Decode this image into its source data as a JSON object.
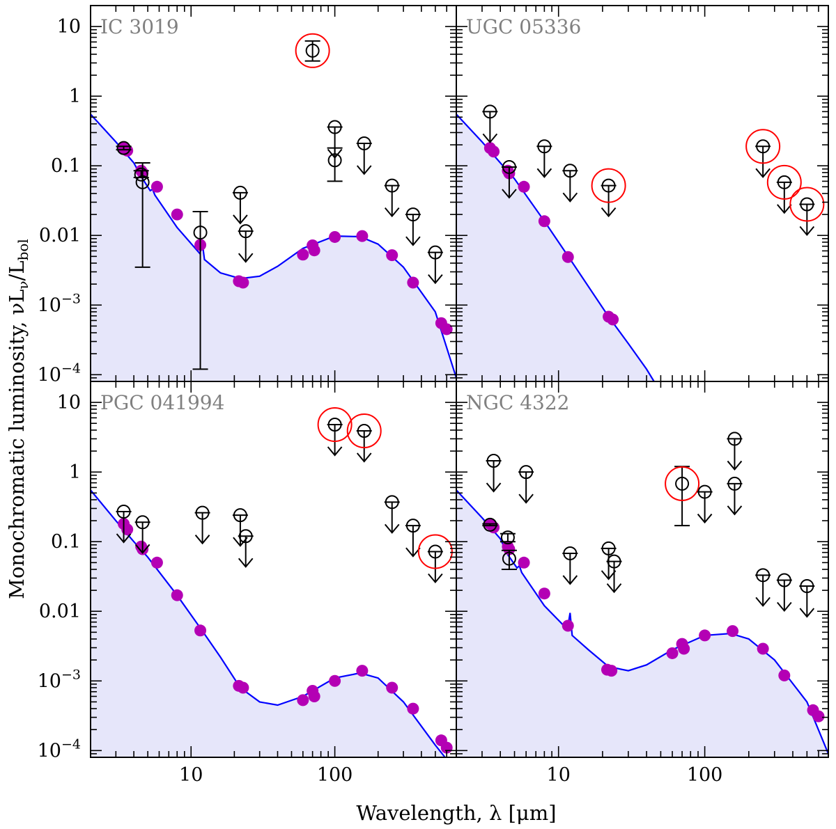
{
  "figure": {
    "xlabel": "Wavelength, λ [μm]",
    "ylabel": "Monochromatic luminosity, νL",
    "ylabel_nu": "ν",
    "ylabel_div": "/L",
    "ylabel_bol": "bol"
  },
  "colors": {
    "model_line": "#0000ff",
    "model_fill": "#e6e6fa",
    "model_points": "#b400b4",
    "observations": "#000000",
    "outlier_ring": "#ff0000",
    "panel_label": "#808080"
  },
  "x_ticks": [
    {
      "value": 10,
      "label": "10"
    },
    {
      "value": 100,
      "label": "100"
    }
  ],
  "y_ticks": [
    {
      "value": 10,
      "label": "10"
    },
    {
      "value": 1,
      "label": "1"
    },
    {
      "value": 0.1,
      "label": "0.1"
    },
    {
      "value": 0.01,
      "label": "0.01"
    },
    {
      "value": 0.001,
      "label": "10",
      "exp": "−3"
    },
    {
      "value": 0.0001,
      "label": "10",
      "exp": "−4"
    }
  ],
  "chart_data": [
    {
      "type": "scatter",
      "name": "IC 3019",
      "xscale": "log",
      "yscale": "log",
      "xlim": [
        2.0,
        700
      ],
      "ylim": [
        8e-05,
        20
      ],
      "model_curve": {
        "x": [
          2,
          3,
          4,
          4.5,
          5.2,
          5.4,
          5.6,
          8,
          11.5,
          12,
          12.4,
          16,
          22,
          30,
          40,
          60,
          100,
          150,
          200,
          300,
          500,
          700
        ],
        "y": [
          0.55,
          0.22,
          0.11,
          0.07,
          0.044,
          0.046,
          0.038,
          0.013,
          0.0055,
          0.0075,
          0.0045,
          0.0029,
          0.0024,
          0.0026,
          0.0036,
          0.0065,
          0.0098,
          0.0096,
          0.0075,
          0.0035,
          0.0008,
          9e-05
        ]
      },
      "model_points": {
        "x": [
          3.4,
          3.6,
          4.5,
          4.6,
          5.8,
          8.0,
          11.6,
          21.5,
          23.0,
          60,
          70,
          72,
          100,
          155,
          250,
          350,
          550,
          600
        ],
        "y": [
          0.18,
          0.165,
          0.085,
          0.08,
          0.05,
          0.02,
          0.0073,
          0.0022,
          0.0021,
          0.0053,
          0.0072,
          0.0061,
          0.0095,
          0.0098,
          0.0052,
          0.0021,
          0.00055,
          0.00045
        ]
      },
      "observations": [
        {
          "x": 3.4,
          "y": 0.18,
          "yerr": [
            0.17,
            0.19
          ]
        },
        {
          "x": 4.5,
          "y": 0.075,
          "yerr": [
            0.068,
            0.085
          ]
        },
        {
          "x": 4.6,
          "y": 0.058,
          "yerr": [
            0.0035,
            0.11
          ]
        },
        {
          "x": 11.6,
          "y": 0.011,
          "yerr": [
            0.00012,
            0.022
          ]
        },
        {
          "x": 22,
          "y": 0.041,
          "upper_limit": true
        },
        {
          "x": 24,
          "y": 0.0115,
          "upper_limit": true
        },
        {
          "x": 70,
          "y": 4.5,
          "yerr": [
            3.2,
            6.2
          ],
          "outlier": true
        },
        {
          "x": 100,
          "y": 0.36,
          "upper_limit": true
        },
        {
          "x": 100,
          "y": 0.12,
          "yerr": [
            0.06,
            0.18
          ]
        },
        {
          "x": 160,
          "y": 0.21,
          "upper_limit": true
        },
        {
          "x": 250,
          "y": 0.052,
          "upper_limit": true
        },
        {
          "x": 350,
          "y": 0.02,
          "upper_limit": true
        },
        {
          "x": 500,
          "y": 0.0057,
          "upper_limit": true
        }
      ]
    },
    {
      "type": "scatter",
      "name": "UGC 05336",
      "xscale": "log",
      "yscale": "log",
      "xlim": [
        2.0,
        700
      ],
      "ylim": [
        8e-05,
        20
      ],
      "model_curve": {
        "x": [
          2,
          3,
          4,
          5,
          8,
          11.5,
          22,
          30,
          40,
          45
        ],
        "y": [
          0.55,
          0.22,
          0.11,
          0.065,
          0.016,
          0.0052,
          0.00068,
          0.00028,
          0.00012,
          8e-05
        ]
      },
      "model_points": {
        "x": [
          3.4,
          3.6,
          4.5,
          4.6,
          5.8,
          8.0,
          11.6,
          22,
          23.5
        ],
        "y": [
          0.18,
          0.16,
          0.085,
          0.078,
          0.05,
          0.016,
          0.0049,
          0.00068,
          0.00062
        ]
      },
      "observations": [
        {
          "x": 3.4,
          "y": 0.6,
          "upper_limit": true
        },
        {
          "x": 4.6,
          "y": 0.096,
          "upper_limit": true
        },
        {
          "x": 8,
          "y": 0.19,
          "upper_limit": true
        },
        {
          "x": 12,
          "y": 0.085,
          "upper_limit": true
        },
        {
          "x": 22,
          "y": 0.052,
          "upper_limit": true,
          "outlier": true
        },
        {
          "x": 250,
          "y": 0.19,
          "upper_limit": true,
          "outlier": true
        },
        {
          "x": 350,
          "y": 0.058,
          "upper_limit": true,
          "outlier": true
        },
        {
          "x": 500,
          "y": 0.028,
          "upper_limit": true,
          "outlier": true
        }
      ]
    },
    {
      "type": "scatter",
      "name": "PGC 041994",
      "xscale": "log",
      "yscale": "log",
      "xlim": [
        2.0,
        700
      ],
      "ylim": [
        8e-05,
        20
      ],
      "model_curve": {
        "x": [
          2,
          3,
          4,
          5,
          8,
          12,
          16,
          22,
          30,
          40,
          60,
          100,
          150,
          200,
          300,
          500,
          700
        ],
        "y": [
          0.55,
          0.2,
          0.1,
          0.06,
          0.017,
          0.0052,
          0.0022,
          0.0008,
          0.0005,
          0.00045,
          0.0006,
          0.0011,
          0.0013,
          0.0011,
          0.0005,
          0.00012,
          5e-05
        ]
      },
      "model_points": {
        "x": [
          3.4,
          3.6,
          4.5,
          4.6,
          5.8,
          8.0,
          11.6,
          21.5,
          23.0,
          60,
          70,
          72,
          100,
          155,
          250,
          350,
          550,
          600
        ],
        "y": [
          0.18,
          0.15,
          0.085,
          0.078,
          0.05,
          0.017,
          0.0053,
          0.00085,
          0.0008,
          0.00053,
          0.00072,
          0.0006,
          0.001,
          0.0014,
          0.0008,
          0.0004,
          0.00014,
          0.00011
        ]
      },
      "observations": [
        {
          "x": 3.4,
          "y": 0.27,
          "upper_limit": true
        },
        {
          "x": 4.6,
          "y": 0.19,
          "upper_limit": true
        },
        {
          "x": 12,
          "y": 0.26,
          "upper_limit": true
        },
        {
          "x": 22,
          "y": 0.24,
          "upper_limit": true
        },
        {
          "x": 24,
          "y": 0.12,
          "upper_limit": true
        },
        {
          "x": 100,
          "y": 4.8,
          "upper_limit": true,
          "outlier": true
        },
        {
          "x": 160,
          "y": 3.9,
          "upper_limit": true,
          "outlier": true
        },
        {
          "x": 250,
          "y": 0.37,
          "upper_limit": true
        },
        {
          "x": 350,
          "y": 0.17,
          "upper_limit": true
        },
        {
          "x": 500,
          "y": 0.072,
          "upper_limit": true,
          "outlier": true
        }
      ]
    },
    {
      "type": "scatter",
      "name": "NGC 4322",
      "xscale": "log",
      "yscale": "log",
      "xlim": [
        2.0,
        700
      ],
      "ylim": [
        8e-05,
        20
      ],
      "model_curve": {
        "x": [
          2,
          3,
          4,
          4.5,
          5.2,
          5.4,
          5.6,
          8,
          11.5,
          12,
          12.4,
          16,
          22,
          30,
          40,
          60,
          100,
          150,
          200,
          300,
          500,
          700
        ],
        "y": [
          0.55,
          0.22,
          0.11,
          0.065,
          0.042,
          0.045,
          0.036,
          0.012,
          0.0055,
          0.0095,
          0.0045,
          0.0028,
          0.0016,
          0.0014,
          0.0017,
          0.0028,
          0.0045,
          0.0048,
          0.004,
          0.002,
          0.0005,
          9e-05
        ]
      },
      "model_points": {
        "x": [
          3.4,
          3.6,
          4.5,
          4.6,
          5.8,
          8.0,
          11.6,
          21.5,
          23.0,
          60,
          70,
          72,
          100,
          155,
          250,
          350,
          550,
          600
        ],
        "y": [
          0.18,
          0.16,
          0.085,
          0.078,
          0.05,
          0.018,
          0.0062,
          0.00145,
          0.0014,
          0.0025,
          0.0034,
          0.0029,
          0.0045,
          0.0052,
          0.0029,
          0.0012,
          0.00038,
          0.00031
        ]
      },
      "observations": [
        {
          "x": 3.4,
          "y": 0.175,
          "yerr": [
            0.17,
            0.18
          ]
        },
        {
          "x": 4.5,
          "y": 0.115,
          "yerr": [
            0.1,
            0.13
          ]
        },
        {
          "x": 4.6,
          "y": 0.057,
          "yerr": [
            0.04,
            0.075
          ]
        },
        {
          "x": 3.6,
          "y": 1.45,
          "upper_limit": true
        },
        {
          "x": 6,
          "y": 1.0,
          "upper_limit": true
        },
        {
          "x": 12,
          "y": 0.068,
          "upper_limit": true
        },
        {
          "x": 22,
          "y": 0.08,
          "upper_limit": true
        },
        {
          "x": 24,
          "y": 0.052,
          "upper_limit": true
        },
        {
          "x": 70,
          "y": 0.68,
          "yerr": [
            0.17,
            1.2
          ],
          "outlier": true
        },
        {
          "x": 100,
          "y": 0.52,
          "upper_limit": true
        },
        {
          "x": 160,
          "y": 3.0,
          "upper_limit": true
        },
        {
          "x": 160,
          "y": 0.68,
          "upper_limit": true
        },
        {
          "x": 250,
          "y": 0.033,
          "upper_limit": true
        },
        {
          "x": 350,
          "y": 0.028,
          "upper_limit": true
        },
        {
          "x": 500,
          "y": 0.023,
          "upper_limit": true
        }
      ]
    }
  ]
}
